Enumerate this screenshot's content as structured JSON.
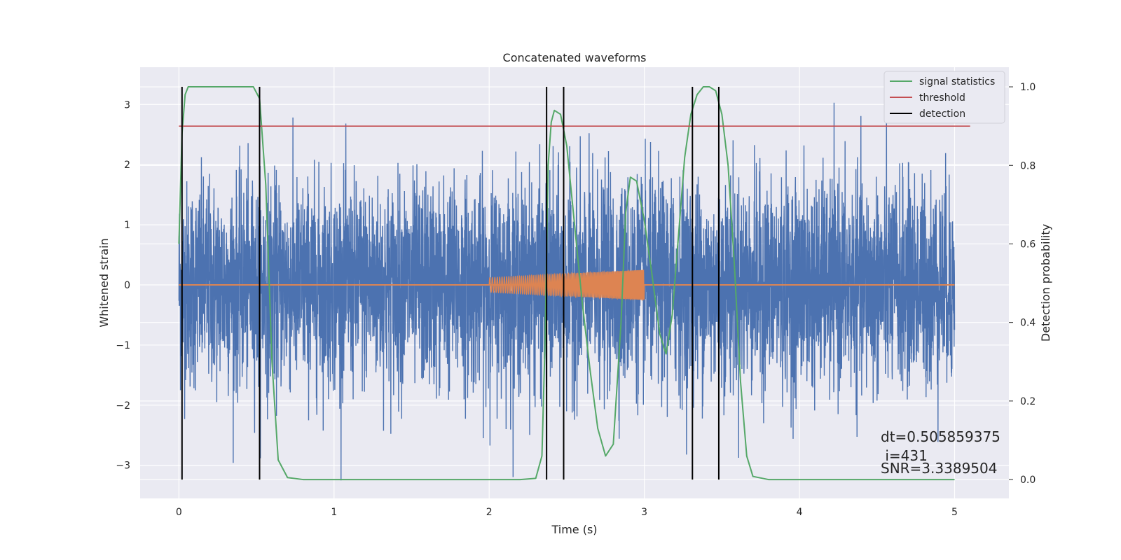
{
  "chart_data": {
    "type": "line",
    "title": "Concatenated waveforms",
    "xlabel": "Time (s)",
    "ylabel": "Whitened strain",
    "ylabel_right": "Detection probability",
    "xlim": [
      -0.25,
      5.35
    ],
    "ylim": [
      -3.55,
      3.62
    ],
    "ylim_right": [
      -0.048,
      1.05
    ],
    "x_ticks": [
      0,
      1,
      2,
      3,
      4,
      5
    ],
    "y_ticks": [
      -3,
      -2,
      -1,
      0,
      1,
      2,
      3
    ],
    "y_ticks_right": [
      0.0,
      0.2,
      0.4,
      0.6,
      0.8,
      1.0
    ],
    "grid": true,
    "legend_position": "top-right",
    "annotations": [
      "dt=0.505859375",
      " i=431",
      "SNR=3.3389504"
    ],
    "series": [
      {
        "kind": "noise",
        "axis": "left",
        "color": "#4c72b0",
        "x_range": [
          0,
          5
        ],
        "min": -3.25,
        "max": 3.3
      },
      {
        "kind": "chirp",
        "axis": "left",
        "color": "#dd8452",
        "x_range": [
          2,
          3
        ],
        "flat_range": [
          0,
          5
        ],
        "amplitude_start": 0.12,
        "amplitude_end": 0.25
      },
      {
        "name": "signal statistics",
        "axis": "right",
        "color": "#55a868",
        "x": [
          0.0,
          0.02,
          0.04,
          0.06,
          0.1,
          0.2,
          0.3,
          0.4,
          0.48,
          0.52,
          0.56,
          0.6,
          0.64,
          0.7,
          0.8,
          1.0,
          1.2,
          1.4,
          1.6,
          1.8,
          2.0,
          2.2,
          2.3,
          2.34,
          2.36,
          2.38,
          2.4,
          2.42,
          2.46,
          2.5,
          2.55,
          2.6,
          2.65,
          2.7,
          2.75,
          2.8,
          2.85,
          2.88,
          2.91,
          2.95,
          3.0,
          3.05,
          3.1,
          3.14,
          3.18,
          3.22,
          3.26,
          3.3,
          3.34,
          3.38,
          3.42,
          3.46,
          3.5,
          3.54,
          3.58,
          3.62,
          3.66,
          3.7,
          3.8,
          4.0,
          4.5,
          5.0
        ],
        "y": [
          0.6,
          0.88,
          0.98,
          1.0,
          1.0,
          1.0,
          1.0,
          1.0,
          1.0,
          0.97,
          0.75,
          0.3,
          0.05,
          0.005,
          0.0,
          0.0,
          0.0,
          0.0,
          0.0,
          0.0,
          0.0,
          0.0,
          0.003,
          0.06,
          0.35,
          0.8,
          0.91,
          0.94,
          0.93,
          0.85,
          0.65,
          0.45,
          0.28,
          0.13,
          0.06,
          0.09,
          0.4,
          0.68,
          0.77,
          0.76,
          0.66,
          0.52,
          0.37,
          0.32,
          0.42,
          0.62,
          0.82,
          0.93,
          0.98,
          1.0,
          1.0,
          0.99,
          0.93,
          0.8,
          0.55,
          0.25,
          0.06,
          0.008,
          0.0,
          0.0,
          0.0,
          0.0
        ]
      },
      {
        "name": "threshold",
        "axis": "right",
        "color": "#c44e52",
        "x": [
          0,
          5.1
        ],
        "y": [
          0.9,
          0.9
        ]
      },
      {
        "name": "detection",
        "axis": "right",
        "color": "#000000",
        "vlines": [
          0.02,
          0.52,
          2.37,
          2.48,
          3.31,
          3.48
        ],
        "ymin": 0.0,
        "ymax": 1.0
      }
    ]
  }
}
